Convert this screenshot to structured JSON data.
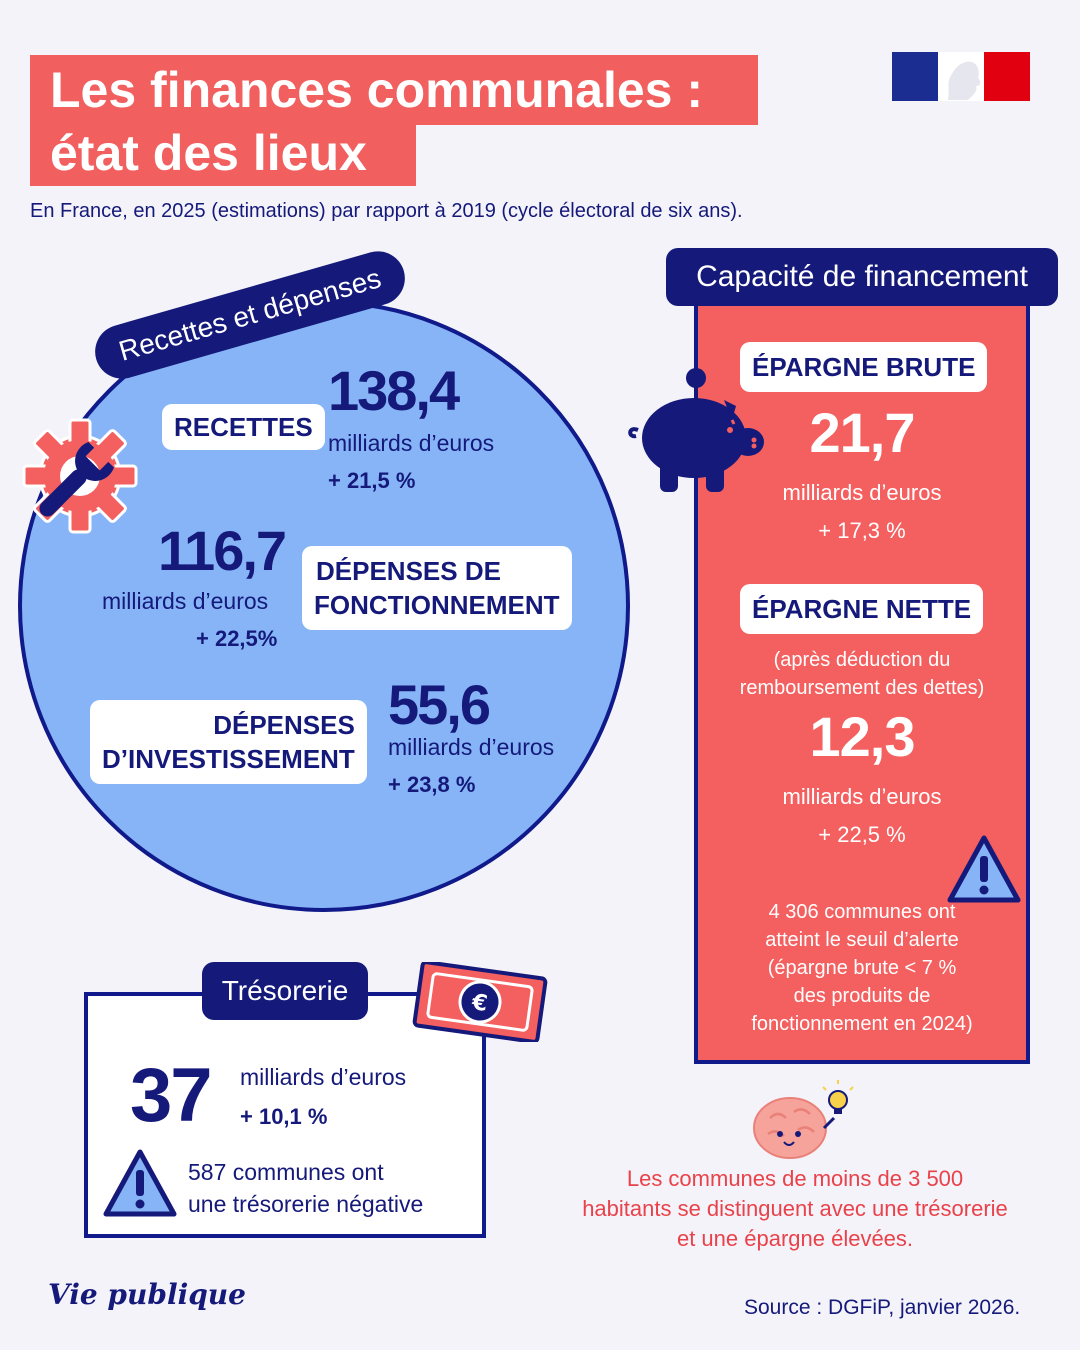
{
  "header": {
    "title_line1": "Les finances communales :",
    "title_line2": "état des lieux",
    "subtitle": "En France, en 2025 (estimations) par rapport à 2019 (cycle électoral de six ans)."
  },
  "recettes_depenses": {
    "label": "Recettes et dépenses",
    "recettes": {
      "label": "RECETTES",
      "value": "138,4",
      "unit": "milliards d’euros",
      "change": "+ 21,5 %"
    },
    "fonctionnement": {
      "label_line1": "DÉPENSES DE",
      "label_line2": "FONCTIONNEMENT",
      "value": "116,7",
      "unit": "milliards d’euros",
      "change": "+ 22,5%"
    },
    "investissement": {
      "label_line1": "DÉPENSES",
      "label_line2": "D’INVESTISSEMENT",
      "value": "55,6",
      "unit": "milliards d’euros",
      "change": "+ 23,8 %"
    }
  },
  "capacite": {
    "header": "Capacité de financement",
    "epargne_brute": {
      "label": "ÉPARGNE BRUTE",
      "value": "21,7",
      "unit": "milliards d’euros",
      "change": "+ 17,3 %"
    },
    "epargne_nette": {
      "label": "ÉPARGNE NETTE",
      "note_line1": "(après déduction du",
      "note_line2": "remboursement des dettes)",
      "value": "12,3",
      "unit": "milliards d’euros",
      "change": "+ 22,5 %"
    },
    "alert_lines": [
      "4 306 communes ont",
      "atteint le seuil d’alerte",
      "(épargne brute < 7 %",
      "des produits de",
      "fonctionnement en 2024)"
    ]
  },
  "tresorerie": {
    "header": "Trésorerie",
    "value": "37",
    "unit": "milliards d’euros",
    "change": "+ 10,1 %",
    "warning_line1": "587 communes ont",
    "warning_line2": "une trésorerie négative"
  },
  "note": {
    "line1": "Les communes de moins de 3 500",
    "line2": "habitants se distinguent avec une trésorerie",
    "line3": "et une épargne élevées."
  },
  "footer": {
    "logo": "Vie publique",
    "source": "Source : DGFiP, janvier 2026."
  },
  "icons": {
    "gear": "gear-wrench-icon",
    "piggy": "piggy-bank-icon",
    "banknote": "euro-banknote-icon",
    "warning": "warning-icon",
    "brain": "brain-idea-icon"
  },
  "colors": {
    "navy": "#14197a",
    "coral": "#f45f5f",
    "blue": "#86b4f6",
    "background": "#f3f3f9"
  }
}
